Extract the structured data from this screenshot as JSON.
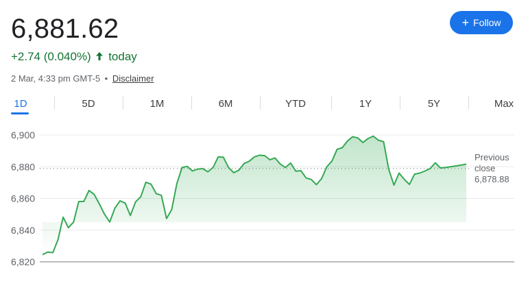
{
  "quote": {
    "price": "6,881.62",
    "change": "+2.74 (0.040%)",
    "change_suffix": "today",
    "timestamp": "2 Mar, 4:33 pm GMT-5",
    "separator": "•",
    "disclaimer": "Disclaimer"
  },
  "follow_button": {
    "icon": "plus-icon",
    "label": "Follow"
  },
  "tabs": [
    {
      "label": "1D",
      "active": true
    },
    {
      "label": "5D",
      "active": false
    },
    {
      "label": "1M",
      "active": false
    },
    {
      "label": "6M",
      "active": false
    },
    {
      "label": "YTD",
      "active": false
    },
    {
      "label": "1Y",
      "active": false
    },
    {
      "label": "5Y",
      "active": false
    },
    {
      "label": "Max",
      "active": false
    }
  ],
  "previous_close": {
    "label_line1": "Previous",
    "label_line2": "close",
    "value": "6,878.88"
  },
  "colors": {
    "up": "#137333",
    "line": "#34a853",
    "accent": "#1a73e8"
  },
  "chart_data": {
    "type": "line",
    "title": "",
    "xlabel": "",
    "ylabel": "",
    "ylim": [
      6820,
      6900
    ],
    "yticks": [
      6820,
      6840,
      6860,
      6880,
      6900
    ],
    "ytick_labels": [
      "6,820",
      "6,840",
      "6,860",
      "6,880",
      "6,900"
    ],
    "grid": true,
    "baseline": 6878.88,
    "series": [
      {
        "values": [
          6824.5,
          6826.2,
          6825.8,
          6834,
          6848.2,
          6841.5,
          6845,
          6858,
          6858.1,
          6865,
          6862.5,
          6856.5,
          6850,
          6845.1,
          6853.8,
          6858.5,
          6857,
          6849.2,
          6857.8,
          6861,
          6870.2,
          6869,
          6863,
          6862,
          6847.3,
          6853,
          6869.5,
          6879.5,
          6880.2,
          6877.3,
          6878.5,
          6878.8,
          6876.8,
          6879.5,
          6886.2,
          6886,
          6879.5,
          6876.2,
          6877.8,
          6882,
          6883.5,
          6886.2,
          6887.3,
          6887,
          6884.4,
          6885.5,
          6881.7,
          6879.5,
          6882.3,
          6877.2,
          6877.5,
          6872.9,
          6872,
          6868.7,
          6872.5,
          6879.9,
          6883.5,
          6891,
          6892,
          6896.2,
          6898.9,
          6898.2,
          6895.3,
          6897.8,
          6899.3,
          6896.7,
          6895.8,
          6878.2,
          6868.4,
          6876,
          6872,
          6868.8,
          6875.3,
          6876,
          6877.3,
          6878.8,
          6882.5,
          6879.2,
          6879.5,
          6880,
          6880.5,
          6881,
          6881.62
        ]
      }
    ]
  }
}
